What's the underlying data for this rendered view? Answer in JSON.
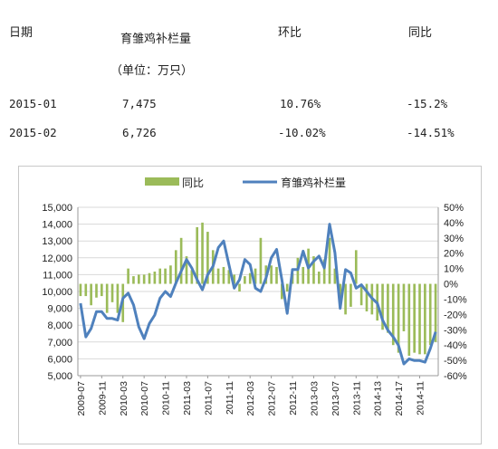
{
  "table": {
    "headers": {
      "date": "日期",
      "stock": "育雏鸡补栏量",
      "unit": "（单位：万只）",
      "mom": "环比",
      "yoy": "同比"
    },
    "rows": [
      {
        "date": "2015-01",
        "stock": "7,475",
        "mom": "10.76%",
        "yoy": "-15.2%"
      },
      {
        "date": "2015-02",
        "stock": "6,726",
        "mom": "-10.02%",
        "yoy": "-14.51%"
      }
    ]
  },
  "chart_data": {
    "type": "bar+line",
    "legend": [
      "同比",
      "育雏鸡补栏量"
    ],
    "colors": {
      "bar": "#9bbb59",
      "line": "#4f81bd"
    },
    "y_left": {
      "min": 5000,
      "max": 15000,
      "ticks": [
        "5,000",
        "6,000",
        "7,000",
        "8,000",
        "9,000",
        "10,000",
        "11,000",
        "12,000",
        "13,000",
        "14,000",
        "15,000"
      ]
    },
    "y_right": {
      "min": -60,
      "max": 50,
      "ticks": [
        "50%",
        "40%",
        "30%",
        "20%",
        "10%",
        "0%",
        "-10%",
        "-20%",
        "-30%",
        "-40%",
        "-50%",
        "-60%"
      ]
    },
    "x_tick_labels": [
      "2009-07",
      "2009-11",
      "2010-03",
      "2010-07",
      "2010-11",
      "2011-03",
      "2011-07",
      "2011-11",
      "2012-03",
      "2012-07",
      "2012-11",
      "2013-03",
      "2013-07",
      "2013-11",
      "2014-13",
      "2014-17",
      "2014-11"
    ],
    "x_start": "2009-07",
    "months": 68,
    "stock_series": [
      9300,
      7300,
      7800,
      8800,
      8800,
      8400,
      8400,
      8300,
      9600,
      9900,
      9200,
      7900,
      7200,
      8100,
      8600,
      9600,
      10000,
      9700,
      10500,
      11200,
      11900,
      11400,
      10700,
      10100,
      11000,
      11500,
      12600,
      13000,
      11600,
      10200,
      10700,
      11900,
      11600,
      10200,
      10000,
      10800,
      12000,
      12500,
      10700,
      8700,
      11300,
      11300,
      12400,
      11400,
      11800,
      12100,
      11400,
      14000,
      12300,
      9000,
      11300,
      11100,
      10200,
      10400,
      10000,
      9600,
      9300,
      8300,
      7700,
      7300,
      6800,
      5700,
      6000,
      5900,
      5900,
      5800,
      6600,
      7600
    ],
    "yoy_series": [
      -8,
      -8,
      -14,
      -9,
      -8,
      -19,
      -12,
      -19,
      -25,
      10,
      5,
      6,
      6,
      7,
      8,
      10,
      10,
      12,
      22,
      30,
      18,
      9,
      37,
      40,
      34,
      22,
      10,
      11,
      9,
      6,
      -5,
      5,
      7,
      10,
      30,
      12,
      12,
      11,
      -10,
      -5,
      7,
      17,
      11,
      23,
      18,
      8,
      16,
      30,
      10,
      -10,
      -20,
      -15,
      22,
      -14,
      -18,
      -20,
      -24,
      -30,
      -32,
      -40,
      -45,
      -31,
      -47,
      -45,
      -46,
      -46,
      -40,
      -38
    ]
  }
}
